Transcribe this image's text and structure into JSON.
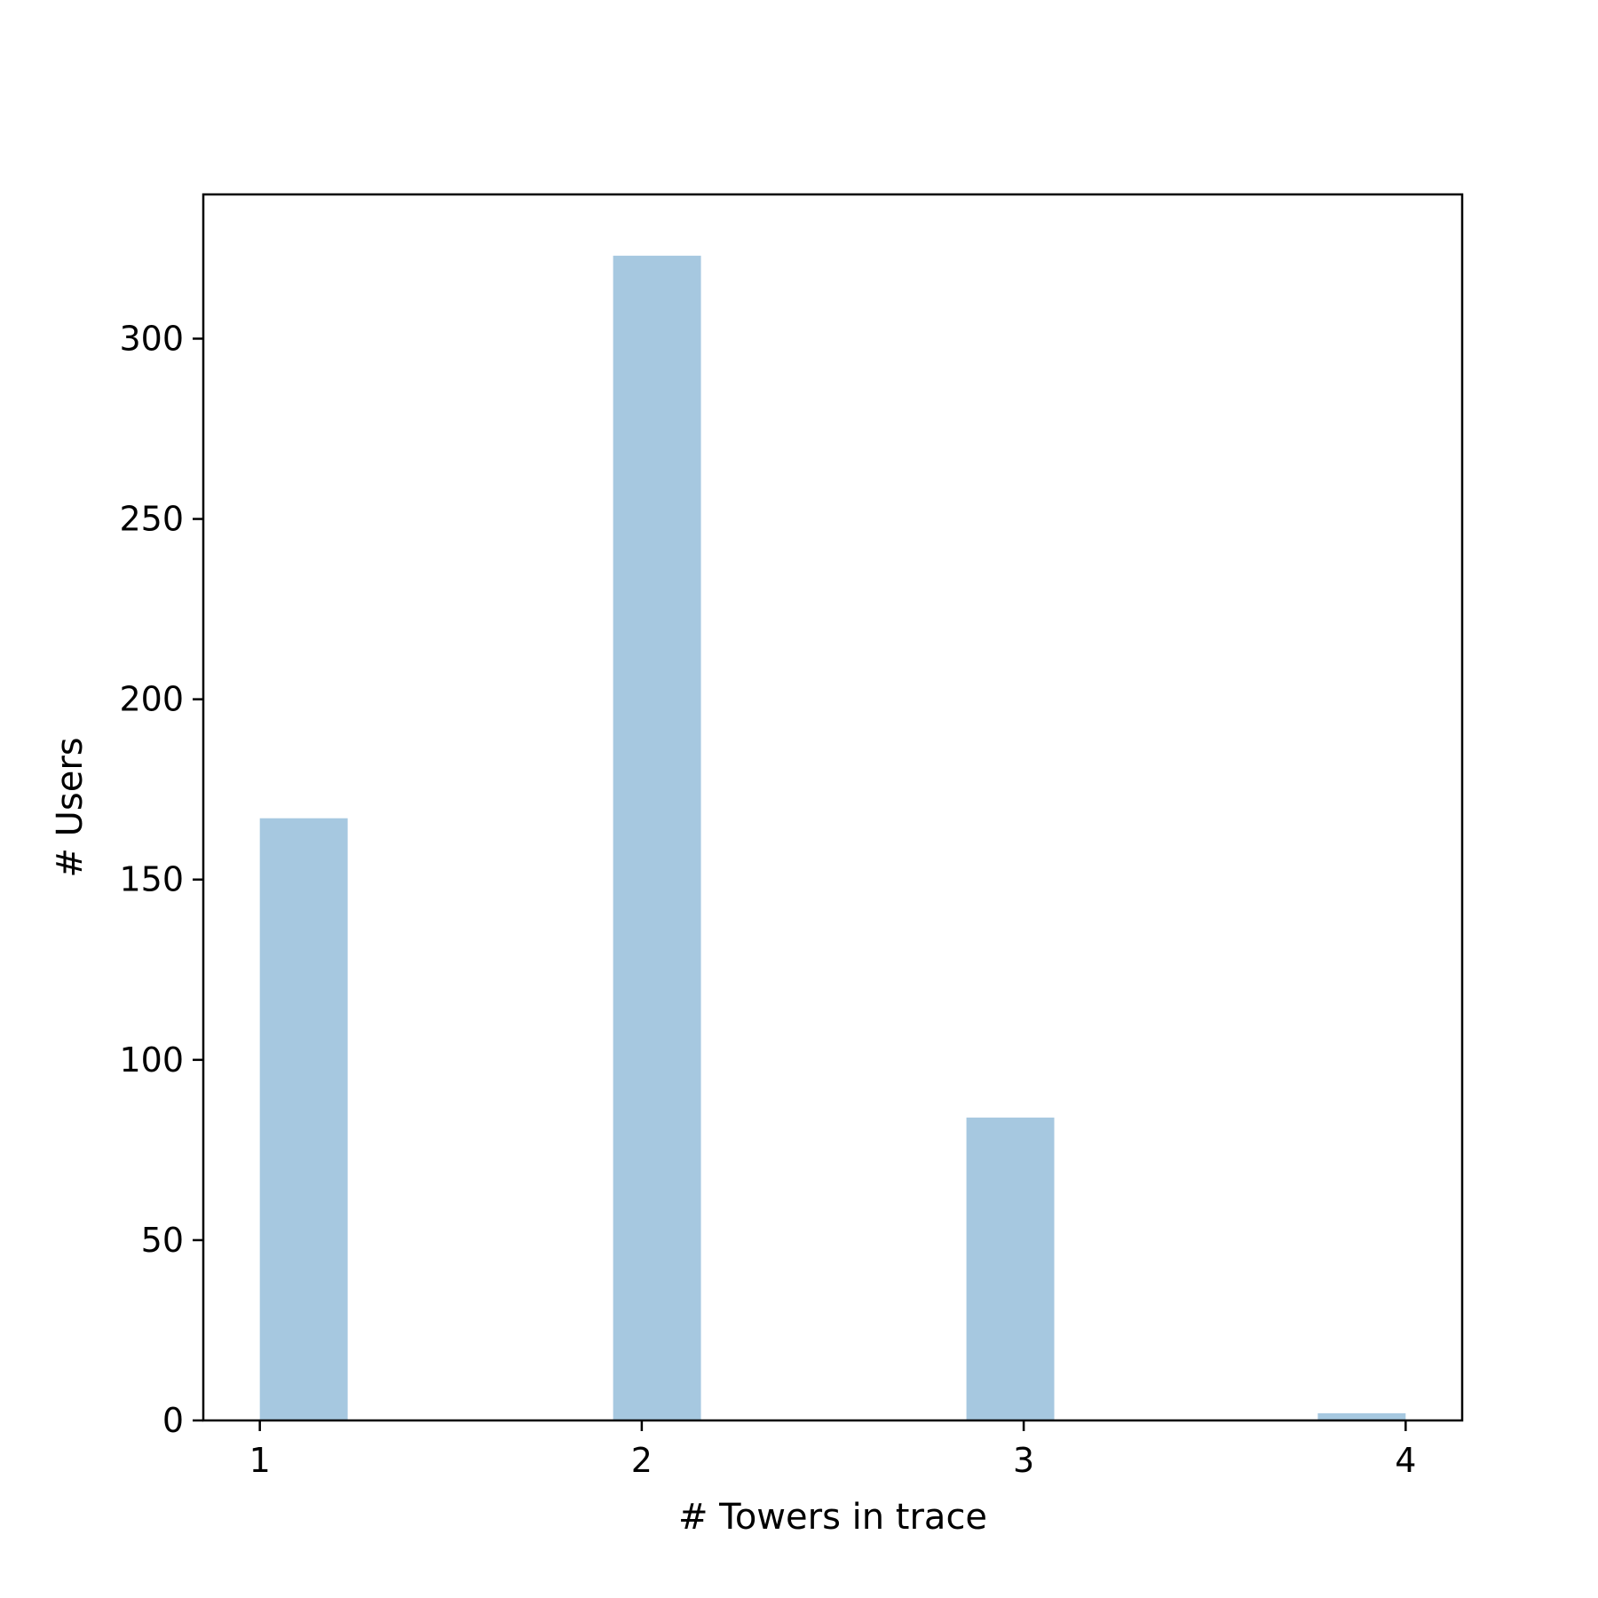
{
  "chart_data": {
    "type": "bar",
    "title": "",
    "xlabel": "# Towers in trace",
    "ylabel": "# Users",
    "bins": [
      {
        "x_start": 1.0,
        "x_end": 1.23,
        "value": 167
      },
      {
        "x_start": 1.925,
        "x_end": 2.155,
        "value": 323
      },
      {
        "x_start": 2.85,
        "x_end": 3.08,
        "value": 84
      },
      {
        "x_start": 3.77,
        "x_end": 4.0,
        "value": 2
      }
    ],
    "xlim": [
      0.852,
      4.148
    ],
    "ylim": [
      0,
      340
    ],
    "xticks": [
      1,
      2,
      3,
      4
    ],
    "xtick_labels": [
      "1",
      "2",
      "3",
      "4"
    ],
    "yticks": [
      0,
      50,
      100,
      150,
      200,
      250,
      300
    ],
    "ytick_labels": [
      "0",
      "50",
      "100",
      "150",
      "200",
      "250",
      "300"
    ],
    "bar_color": "#a6c8e0",
    "grid": false,
    "legend": "none"
  }
}
